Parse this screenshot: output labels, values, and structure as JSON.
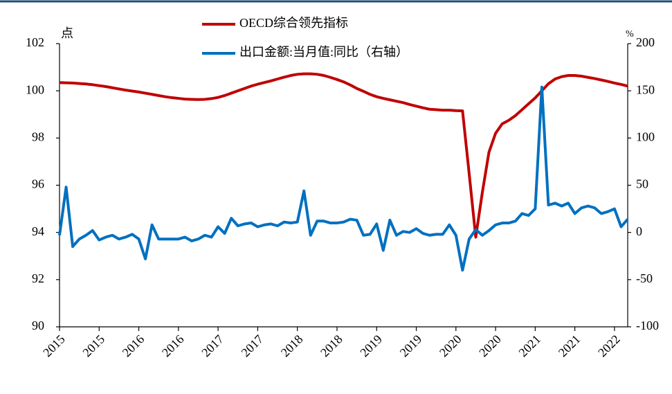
{
  "chart_data": {
    "type": "line",
    "categories": [
      "2015",
      null,
      null,
      null,
      null,
      null,
      "2015",
      null,
      null,
      null,
      null,
      null,
      "2016",
      null,
      null,
      null,
      null,
      null,
      "2016",
      null,
      null,
      null,
      null,
      null,
      "2017",
      null,
      null,
      null,
      null,
      null,
      "2017",
      null,
      null,
      null,
      null,
      null,
      "2018",
      null,
      null,
      null,
      null,
      null,
      "2018",
      null,
      null,
      null,
      null,
      null,
      "2019",
      null,
      null,
      null,
      null,
      null,
      "2019",
      null,
      null,
      null,
      null,
      null,
      "2020",
      null,
      null,
      null,
      null,
      null,
      "2020",
      null,
      null,
      null,
      null,
      null,
      "2021",
      null,
      null,
      null,
      null,
      null,
      "2021",
      null,
      null,
      null,
      null,
      null,
      "2022",
      null,
      null
    ],
    "series": [
      {
        "name": "OECD综合领先指标",
        "color": "#c00000",
        "axis": "y",
        "values": [
          100.35,
          100.34,
          100.33,
          100.31,
          100.29,
          100.26,
          100.22,
          100.18,
          100.13,
          100.08,
          100.03,
          99.99,
          99.95,
          99.9,
          99.85,
          99.8,
          99.75,
          99.71,
          99.68,
          99.65,
          99.64,
          99.63,
          99.64,
          99.67,
          99.72,
          99.8,
          99.9,
          100.0,
          100.1,
          100.2,
          100.28,
          100.35,
          100.42,
          100.5,
          100.58,
          100.65,
          100.7,
          100.72,
          100.72,
          100.7,
          100.65,
          100.57,
          100.48,
          100.38,
          100.25,
          100.1,
          99.98,
          99.85,
          99.75,
          99.68,
          99.62,
          99.56,
          99.5,
          99.42,
          99.35,
          99.28,
          99.22,
          99.2,
          99.18,
          99.18,
          99.16,
          99.15,
          96.5,
          93.8,
          95.7,
          97.4,
          98.2,
          98.6,
          98.75,
          98.95,
          99.2,
          99.45,
          99.7,
          100.0,
          100.3,
          100.5,
          100.6,
          100.65,
          100.65,
          100.62,
          100.57,
          100.52,
          100.46,
          100.4,
          100.33,
          100.27,
          100.2
        ]
      },
      {
        "name": "出口金额:当月值:同比（右轴）",
        "color": "#0070c0",
        "axis": "y2",
        "values": [
          -3,
          48,
          -15,
          -7,
          -3,
          2,
          -8,
          -5,
          -3,
          -7,
          -5,
          -2,
          -7,
          -28,
          8,
          -7,
          -7,
          -7,
          -7,
          -5,
          -9,
          -7,
          -3,
          -5,
          6,
          -1,
          15,
          7,
          9,
          10,
          6,
          8,
          9,
          7,
          11,
          10,
          11,
          44,
          -3,
          12,
          12,
          10,
          10,
          11,
          14,
          13,
          -3,
          -2,
          9,
          -19,
          13,
          -3,
          1,
          0,
          4,
          -1,
          -3,
          -2,
          -2,
          8,
          -3,
          -40,
          -7,
          3,
          -3,
          2,
          8,
          10,
          10,
          12,
          20,
          18,
          25,
          154,
          29,
          31,
          28,
          31,
          20,
          26,
          28,
          26,
          20,
          22,
          25,
          6,
          14
        ]
      }
    ],
    "ylabel": "点",
    "y2label": "%",
    "ylim": [
      90,
      102
    ],
    "yticks": [
      90,
      92,
      94,
      96,
      98,
      100,
      102
    ],
    "y2lim": [
      -100,
      200
    ],
    "y2ticks": [
      -100,
      -50,
      0,
      50,
      100,
      150,
      200
    ],
    "legend": "top"
  }
}
